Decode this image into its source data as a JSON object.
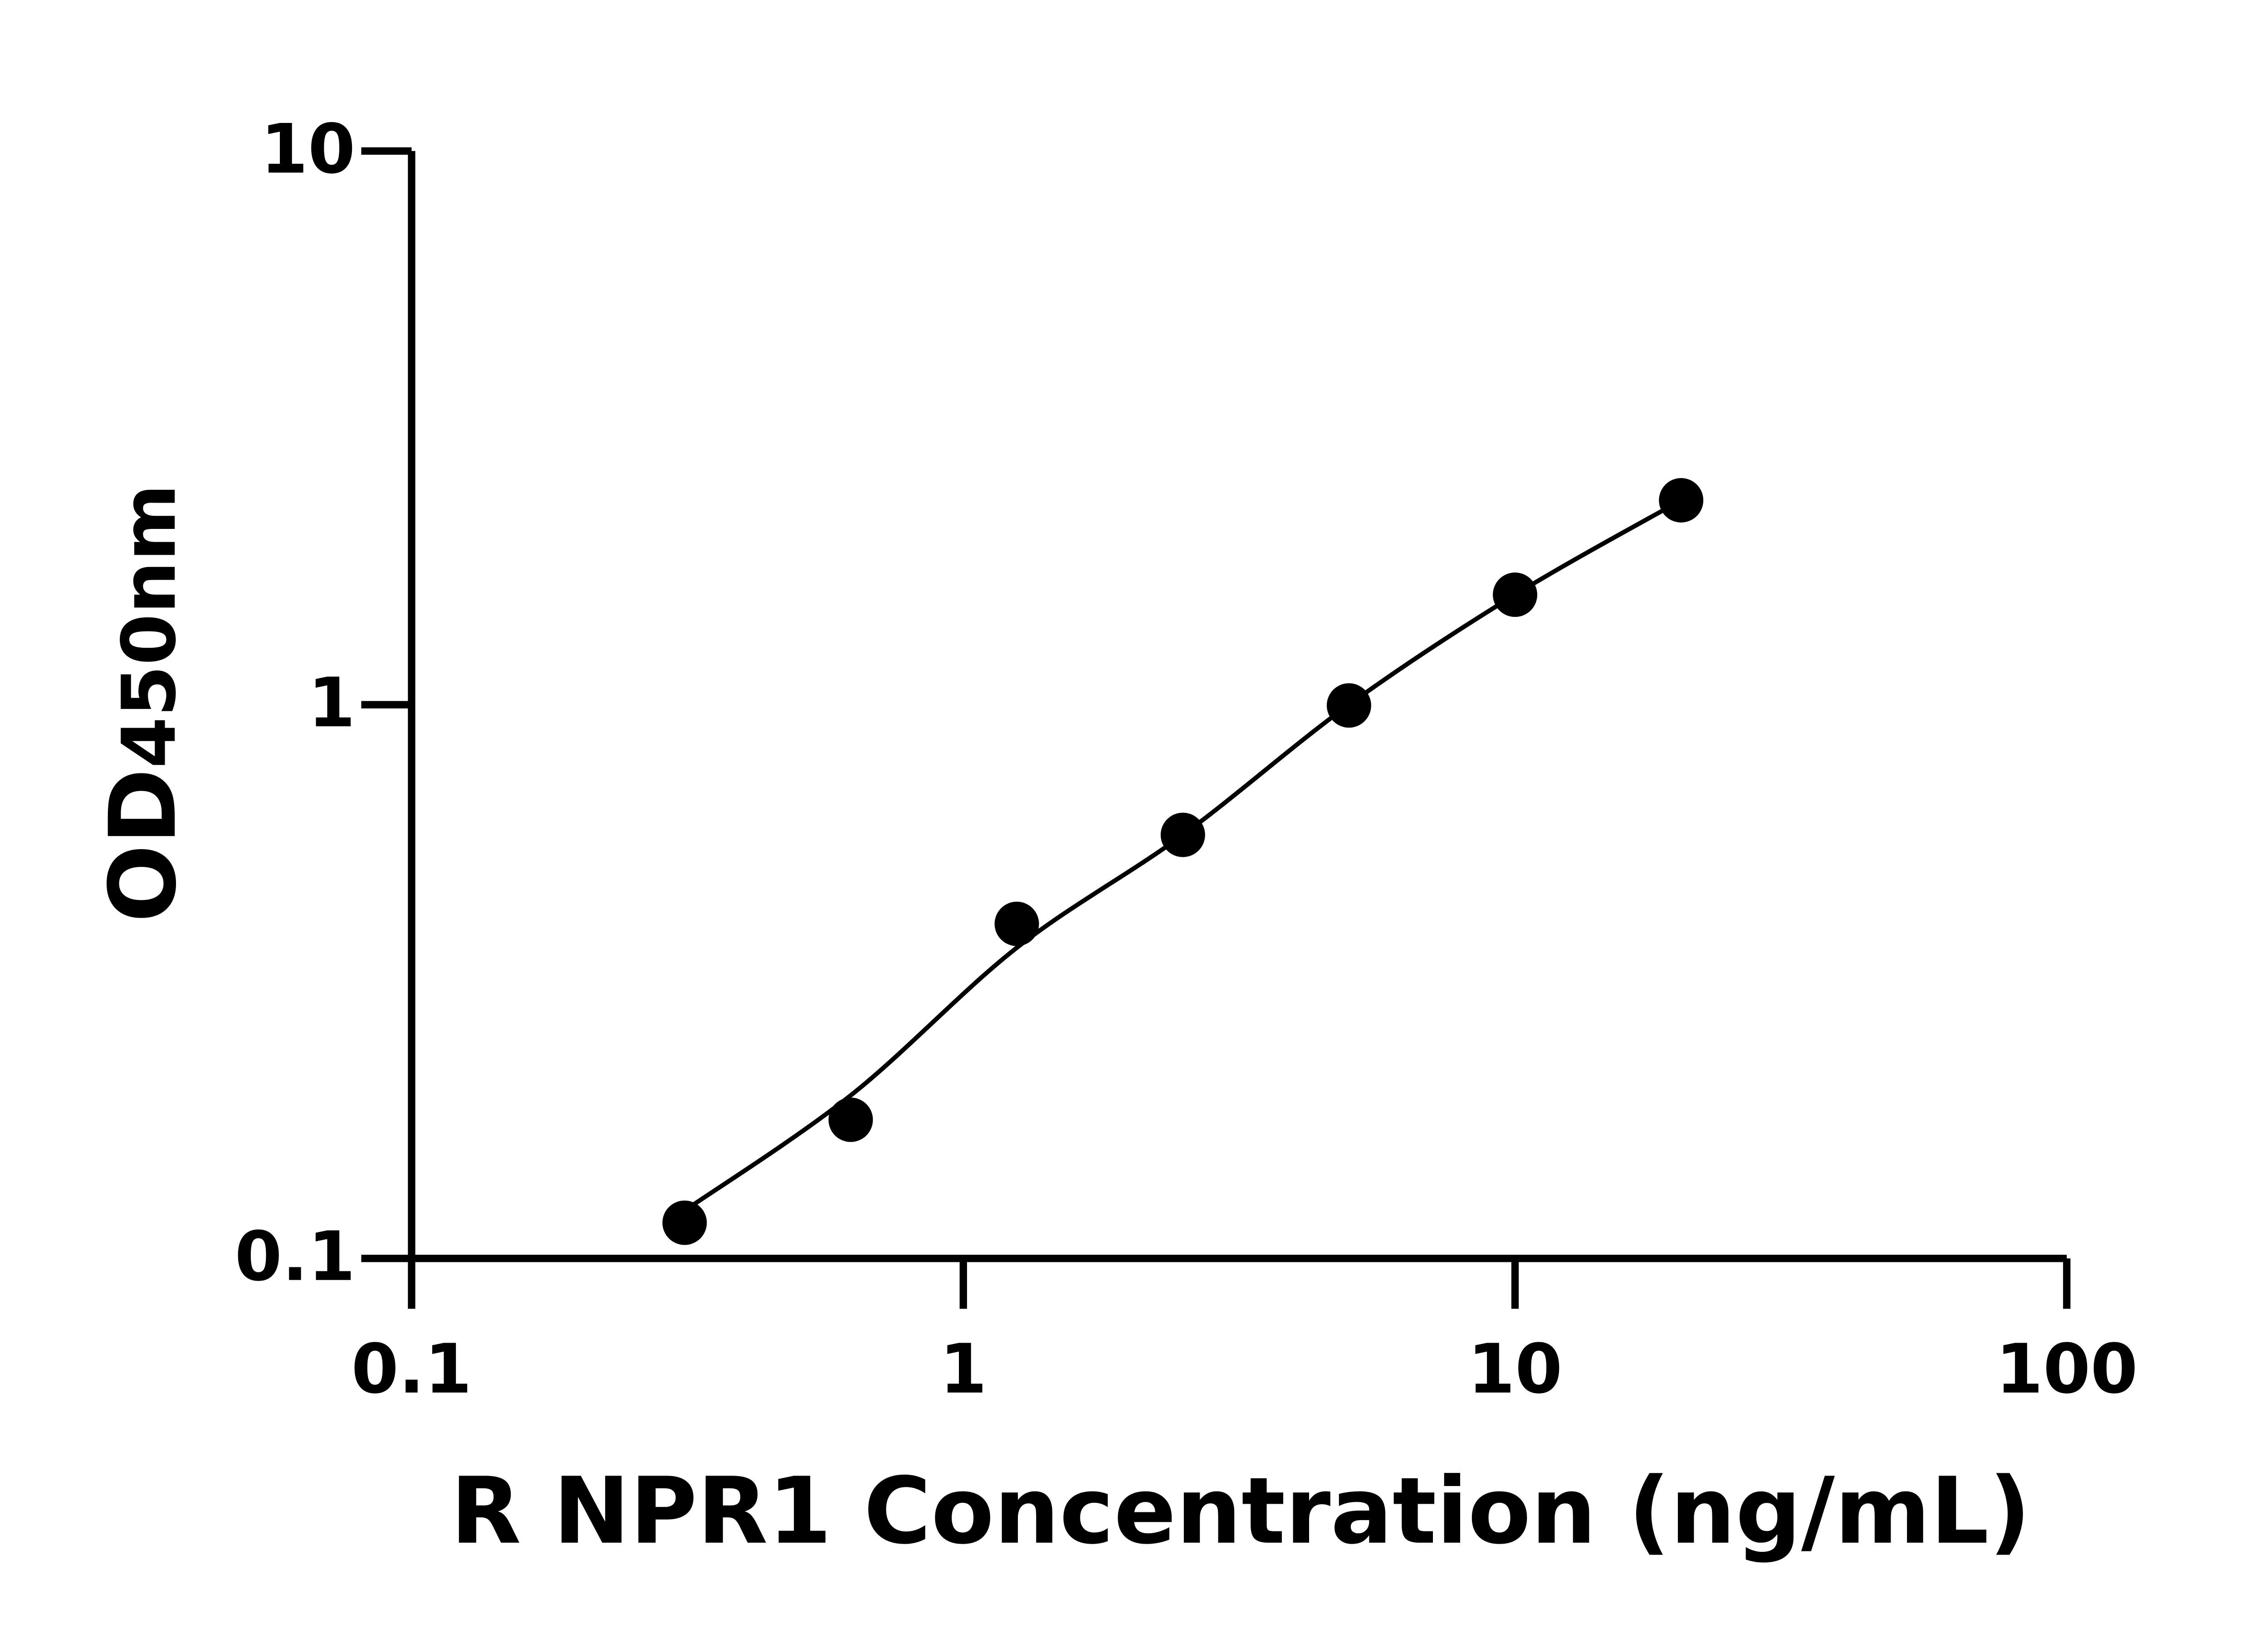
{
  "chart_data": {
    "type": "scatter",
    "x_label": "R NPR1 Concentration (ng/mL)",
    "y_label": "OD",
    "y_label_sub": "450nm",
    "x": [
      0.3125,
      0.625,
      1.25,
      2.5,
      5,
      10,
      20
    ],
    "values": [
      0.116,
      0.178,
      0.402,
      0.582,
      0.997,
      1.58,
      2.34
    ],
    "fit": [
      0.122,
      0.197,
      0.364,
      0.582,
      1.0,
      1.58,
      2.34
    ],
    "color": "#000000",
    "xlim": [
      0.1,
      100
    ],
    "ylim": [
      0.1,
      10
    ],
    "xticks": [
      0.1,
      1,
      10,
      100
    ],
    "yticks": [
      0.1,
      1,
      10
    ],
    "xlog": true,
    "ylog": true,
    "grid": false
  }
}
